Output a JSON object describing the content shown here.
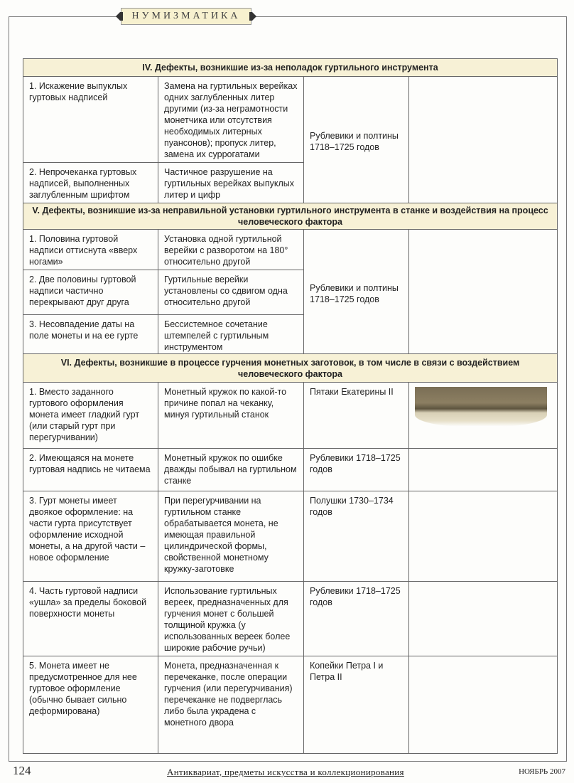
{
  "header": {
    "section": "НУМИЗМАТИКА"
  },
  "sections": [
    {
      "title": "IV. Дефекты, возникшие из-за неполадок гуртильного инструмента",
      "shared_coins": "Рублевики и полтины 1718–1725 годов",
      "rows": [
        {
          "defect": "1. Искажение выпуклых гуртовых надписей",
          "cause": "Замена на гуртильных верейках одних заглубленных литер другими (из-за неграмотности монетчика или отсутствия необходимых литерных пуансонов); пропуск литер, замена их суррогатами"
        },
        {
          "defect": "2. Непрочеканка гуртовых надписей, выполненных заглубленным шрифтом",
          "cause": "Частичное разрушение на гуртильных верейках выпуклых литер и цифр"
        }
      ]
    },
    {
      "title": "V. Дефекты, возникшие из-за неправильной установки гуртильного инструмента в станке и воздействия на процесс человеческого фактора",
      "shared_coins": "Рублевики и полтины 1718–1725 годов",
      "rows": [
        {
          "defect": "1. Половина гуртовой надписи оттиснута «вверх ногами»",
          "cause": "Установка одной гуртильной верейки с разворотом на 180° относительно другой"
        },
        {
          "defect": "2. Две половины гуртовой надписи частично перекрывают друг друга",
          "cause": "Гуртильные верейки установлены со сдвигом одна относительно другой"
        },
        {
          "defect": "3. Несовпадение даты на поле монеты и на ее гурте",
          "cause": "Бессистемное сочетание штемпелей с гуртильным инструментом"
        }
      ]
    },
    {
      "title": "VI. Дефекты, возникшие в процессе гурчения монетных заготовок, в том числе в связи с воздействием человеческого фактора",
      "rows": [
        {
          "defect": "1. Вместо заданного гуртового оформления монета имеет гладкий гурт (или старый гурт при перегурчивании)",
          "cause": "Монетный кружок по какой-то причине попал на чеканку, минуя гуртильный станок",
          "coins": "Пятаки Екатерины II"
        },
        {
          "defect": "2. Имеющаяся на монете гуртовая надпись не читаема",
          "cause": "Монетный кружок по ошибке дважды побывал на гуртильном станке",
          "coins": "Рублевики 1718–1725 годов"
        },
        {
          "defect": "3. Гурт монеты имеет двоякое оформление: на части гурта присутствует оформление исходной монеты, а на другой части – новое оформление",
          "cause": "При перегурчивании на гуртильном станке обрабатывается монета, не имеющая правильной цилиндрической формы, свойственной монетному кружку-заготовке",
          "coins": "Полушки 1730–1734 годов"
        },
        {
          "defect": "4. Часть гуртовой надписи «ушла» за пределы боковой поверхности монеты",
          "cause": "Использование гуртильных вереек, предназначенных для гурчения монет с большей толщиной кружка (у использованных вереек более широкие рабочие ручьи)",
          "coins": "Рублевики 1718–1725 годов"
        },
        {
          "defect": "5. Монета имеет не предусмотренное для нее гуртовое оформление (обычно бывает сильно деформирована)",
          "cause": "Монета, предназначенная к перечеканке, после операции гурчения (или перегурчивания) перечеканке не подверглась либо была украдена с монетного двора",
          "coins": "Копейки Петра I и Петра II"
        }
      ]
    }
  ],
  "footer": {
    "page": "124",
    "magazine": "Антиквариат, предметы искусства и коллекционирования",
    "issue": "НОЯБРЬ 2007"
  }
}
